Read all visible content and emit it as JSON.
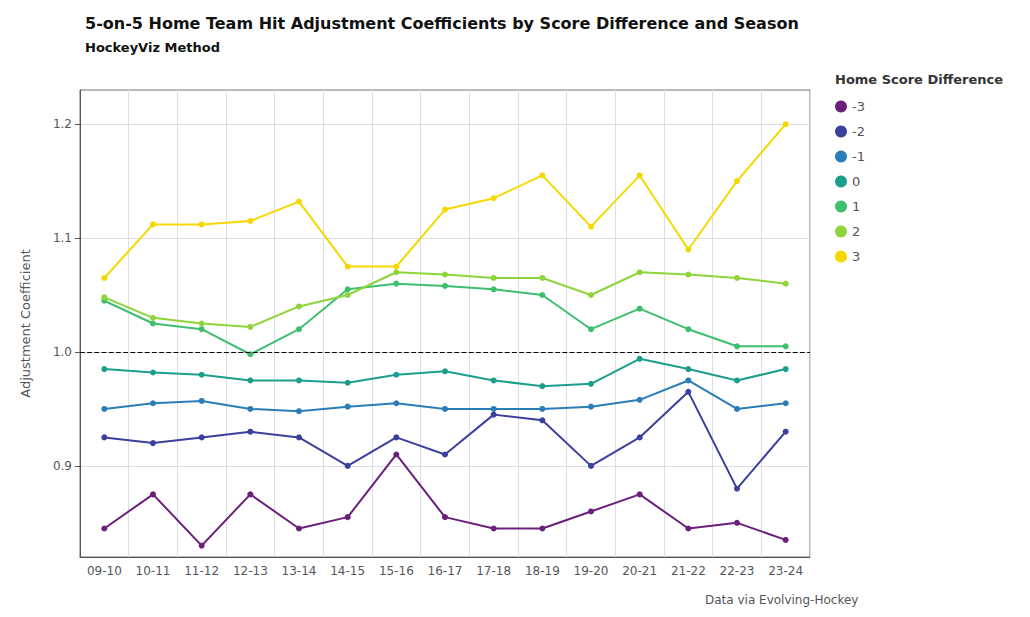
{
  "chart_data": {
    "type": "line",
    "title": "5-on-5 Home Team Hit Adjustment Coefficients by Score Difference and Season",
    "subtitle": "HockeyViz Method",
    "ylabel": "Adjustment Coefficient",
    "footnote": "Data via Evolving-Hockey",
    "legend_title": "Home Score Difference",
    "legend": "right",
    "grid": true,
    "marker": "circle",
    "categories": [
      "09-10",
      "10-11",
      "11-12",
      "12-13",
      "13-14",
      "14-15",
      "15-16",
      "16-17",
      "17-18",
      "18-19",
      "19-20",
      "20-21",
      "21-22",
      "22-23",
      "23-24"
    ],
    "series": [
      {
        "name": "-3",
        "color": "#6B1F7C",
        "values": [
          0.845,
          0.875,
          0.83,
          0.875,
          0.845,
          0.855,
          0.91,
          0.855,
          0.845,
          0.845,
          0.86,
          0.875,
          0.845,
          0.85,
          0.835
        ]
      },
      {
        "name": "-2",
        "color": "#3B3F9E",
        "values": [
          0.925,
          0.92,
          0.925,
          0.93,
          0.925,
          0.9,
          0.925,
          0.91,
          0.945,
          0.94,
          0.9,
          0.925,
          0.965,
          0.88,
          0.93
        ]
      },
      {
        "name": "-1",
        "color": "#2B7DB8",
        "values": [
          0.95,
          0.955,
          0.957,
          0.95,
          0.948,
          0.952,
          0.955,
          0.95,
          0.95,
          0.95,
          0.952,
          0.958,
          0.975,
          0.95,
          0.955
        ]
      },
      {
        "name": "0",
        "color": "#1C9E8C",
        "values": [
          0.985,
          0.982,
          0.98,
          0.975,
          0.975,
          0.973,
          0.98,
          0.983,
          0.975,
          0.97,
          0.972,
          0.994,
          0.985,
          0.975,
          0.985
        ]
      },
      {
        "name": "1",
        "color": "#3DBF6E",
        "values": [
          1.045,
          1.025,
          1.02,
          0.998,
          1.02,
          1.055,
          1.06,
          1.058,
          1.055,
          1.05,
          1.02,
          1.038,
          1.02,
          1.005,
          1.005
        ]
      },
      {
        "name": "2",
        "color": "#8ED43A",
        "values": [
          1.048,
          1.03,
          1.025,
          1.022,
          1.04,
          1.05,
          1.07,
          1.068,
          1.065,
          1.065,
          1.05,
          1.07,
          1.068,
          1.065,
          1.06
        ]
      },
      {
        "name": "3",
        "color": "#F5D800",
        "values": [
          1.065,
          1.112,
          1.112,
          1.115,
          1.132,
          1.075,
          1.075,
          1.125,
          1.135,
          1.155,
          1.11,
          1.155,
          1.09,
          1.15,
          1.2
        ]
      }
    ],
    "reference_line": 1.0,
    "ylim": [
      0.82,
      1.23
    ],
    "yticks": [
      0.9,
      {
        "value": 1.0,
        "label": "1.0"
      },
      1.1,
      1.2
    ]
  }
}
